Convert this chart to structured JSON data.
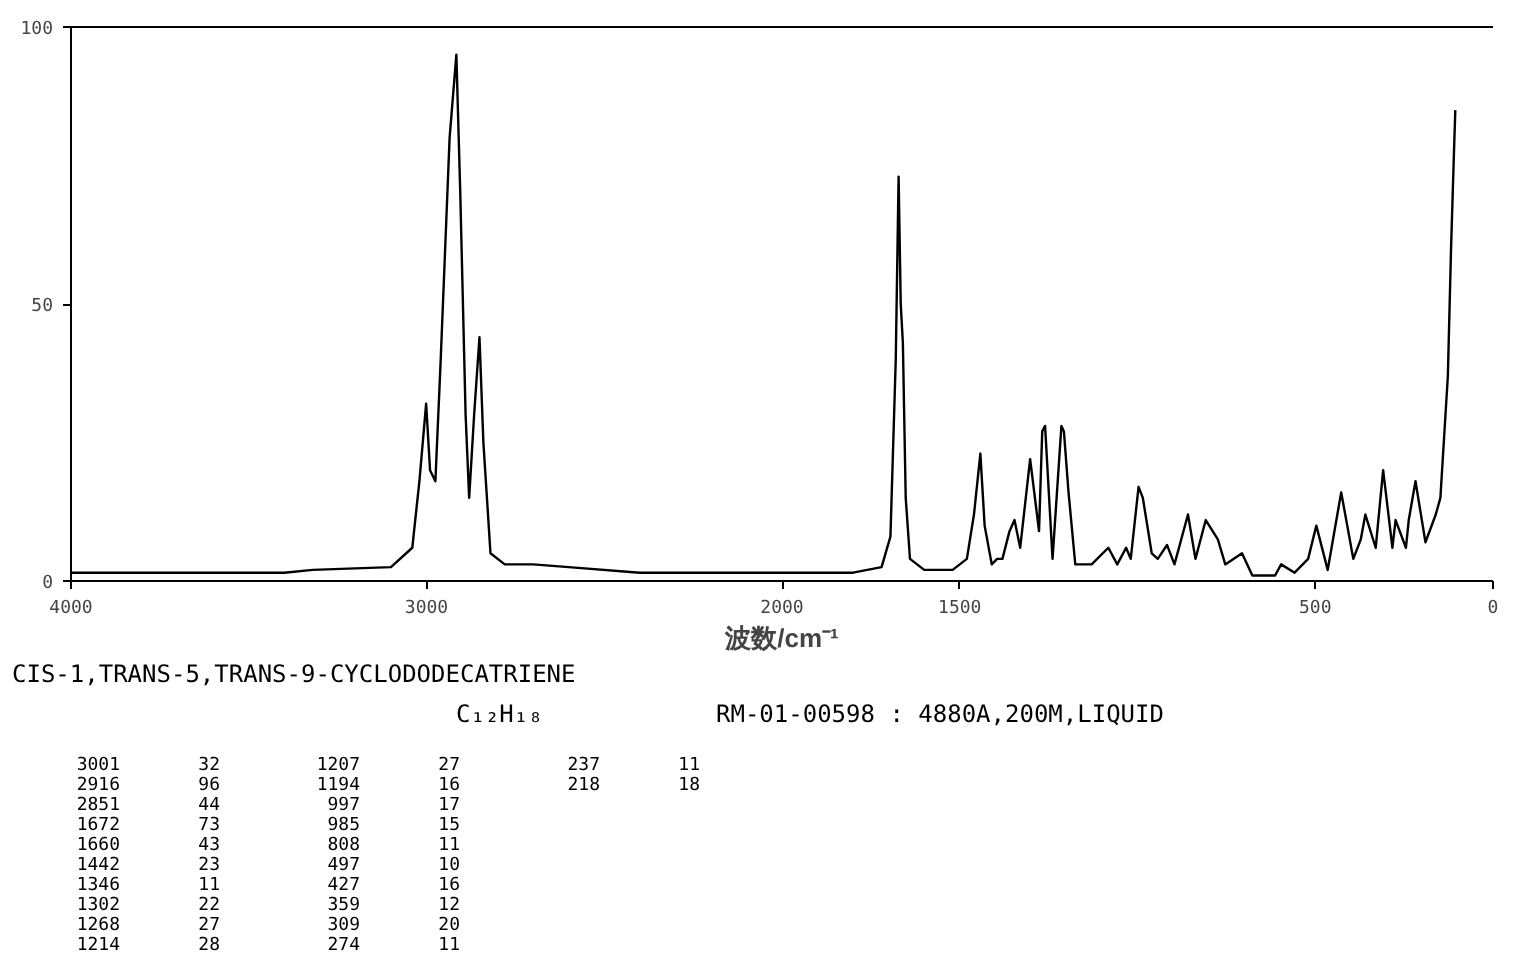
{
  "chart_data": {
    "type": "line",
    "xlabel": "波数/cm⁻¹",
    "x": [
      4000,
      3400,
      3320,
      3100,
      3040,
      3020,
      3001,
      2990,
      2975,
      2960,
      2935,
      2916,
      2905,
      2890,
      2880,
      2866,
      2851,
      2840,
      2820,
      2780,
      2700,
      2600,
      2400,
      2000,
      1800,
      1720,
      1695,
      1680,
      1672,
      1666,
      1660,
      1652,
      1640,
      1600,
      1520,
      1480,
      1460,
      1442,
      1430,
      1410,
      1395,
      1380,
      1360,
      1346,
      1330,
      1302,
      1277,
      1268,
      1260,
      1239,
      1214,
      1207,
      1194,
      1175,
      1129,
      1082,
      1057,
      1032,
      1019,
      997,
      985,
      960,
      943,
      917,
      896,
      858,
      837,
      808,
      774,
      753,
      706,
      677,
      613,
      596,
      558,
      520,
      497,
      465,
      427,
      393,
      372,
      359,
      330,
      309,
      283,
      274,
      245,
      237,
      218,
      190,
      161,
      148,
      127,
      118,
      110,
      106
    ],
    "series": [
      {
        "color": "#000000",
        "values": [
          1.5,
          1.5,
          2,
          2.5,
          6,
          18,
          32,
          20,
          18,
          40,
          80,
          95,
          70,
          30,
          15,
          30,
          44,
          25,
          5,
          3,
          3,
          2.5,
          1.5,
          1.5,
          1.5,
          2.5,
          8,
          40,
          73,
          50,
          43,
          15,
          4,
          2,
          2,
          4,
          12,
          23,
          10,
          3,
          4,
          4,
          9,
          11,
          6,
          22,
          9,
          27,
          28,
          4,
          28,
          27,
          16,
          3,
          3,
          6,
          3,
          6,
          4,
          17,
          15,
          5,
          4,
          6.5,
          3,
          12,
          4,
          11,
          7.5,
          3,
          5,
          1,
          1,
          3,
          1.5,
          4,
          10,
          2,
          16,
          4,
          7.5,
          12,
          6,
          20,
          6,
          11,
          6,
          11,
          18,
          7,
          12,
          15,
          37,
          60,
          77,
          85
        ]
      }
    ],
    "xlim": [
      4000,
      0
    ],
    "xticks": [
      4000,
      3000,
      2000,
      1500,
      500,
      0
    ],
    "ylim": [
      0,
      100
    ],
    "yticks": [
      0,
      50,
      100
    ],
    "grid": false,
    "line_style": "solid",
    "annotations": [
      "CIS-1,TRANS-5,TRANS-9-CYCLODODECATRIENE",
      "C₁₂H₁₈",
      "RM-01-00598 : 4880A,200M,LIQUID",
      "3001  32",
      "2916  96",
      "2851  44",
      "1672  73",
      "1660  43",
      "1442  23",
      "1346  11",
      "1302  22",
      "1268  27",
      "1214  28",
      "1207  27",
      "1194  16",
      "997  17",
      "985  15",
      "808  11",
      "497  10",
      "427  16",
      "359  12",
      "309  20",
      "274  11",
      "237  11",
      "218  18"
    ]
  }
}
